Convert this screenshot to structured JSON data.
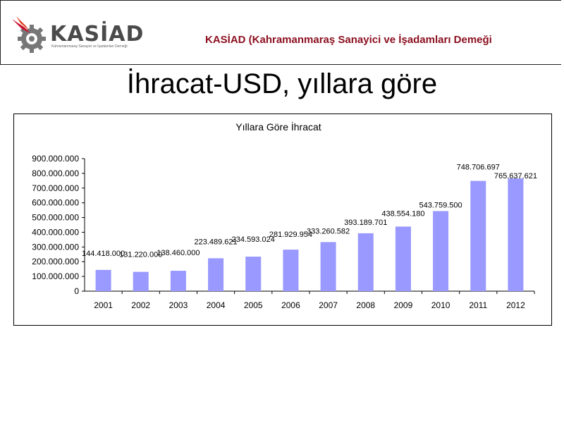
{
  "header": {
    "logo_text": "KASİAD",
    "logo_subtitle": "Kahramanmaraş Sanayici ve İşadamları Derneği",
    "org_title": "KASİAD (Kahramanmaraş Sanayici ve İşadamları Demeği"
  },
  "slide": {
    "title": "İhracat-USD, yıllara göre"
  },
  "colors": {
    "bar": "#9999ff",
    "org_title": "#8b0f1f",
    "logo_gear": "#777777",
    "logo_flame": "#c8102e"
  },
  "chart_data": {
    "type": "bar",
    "title": "Yıllara Göre İhracat",
    "xlabel": "",
    "ylabel": "",
    "categories": [
      "2001",
      "2002",
      "2003",
      "2004",
      "2005",
      "2006",
      "2007",
      "2008",
      "2009",
      "2010",
      "2011",
      "2012"
    ],
    "values": [
      144418000,
      131220000,
      138460000,
      223489621,
      234593024,
      281929954,
      333260582,
      393189701,
      438554180,
      543759500,
      748706697,
      765637621
    ],
    "value_labels": [
      "144.418.000",
      "131.220.000",
      "138.460.000",
      "223.489.621",
      "234.593.024",
      "281.929.954",
      "333.260.582",
      "393.189.701",
      "438.554.180",
      "543.759.500",
      "748.706.697",
      "765.637.621"
    ],
    "ylim": [
      0,
      900000000
    ],
    "yticks": [
      0,
      100000000,
      200000000,
      300000000,
      400000000,
      500000000,
      600000000,
      700000000,
      800000000,
      900000000
    ],
    "ytick_labels": [
      "0",
      "100.000.000",
      "200.000.000",
      "300.000.000",
      "400.000.000",
      "500.000.000",
      "600.000.000",
      "700.000.000",
      "800.000.000",
      "900.000.000"
    ],
    "grid": false,
    "legend": "none"
  }
}
